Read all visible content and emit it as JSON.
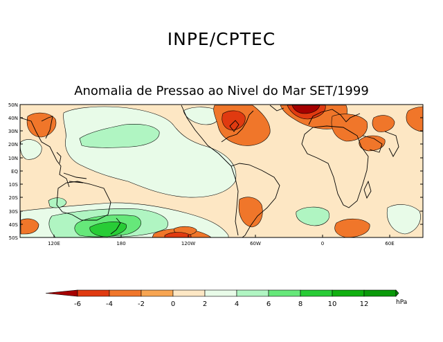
{
  "header": {
    "organization": "INPE/CPTEC",
    "title": "Anomalia de Pressao ao Nivel do Mar SET/1999"
  },
  "map": {
    "lat_labels": [
      "50N",
      "40N",
      "30N",
      "20N",
      "10N",
      "EQ",
      "10S",
      "20S",
      "30S",
      "40S",
      "50S"
    ],
    "lon_labels": [
      "120E",
      "180",
      "120W",
      "60W",
      "0",
      "60E"
    ]
  },
  "colorbar": {
    "unit": "hPa",
    "labels": [
      "-6",
      "-4",
      "-2",
      "0",
      "2",
      "4",
      "6",
      "8",
      "10",
      "12"
    ],
    "colors": [
      "#a50000",
      "#e03a10",
      "#f0762a",
      "#f7a552",
      "#fde7c4",
      "#e8fbe8",
      "#b0f5c2",
      "#66e87a",
      "#28cc36",
      "#10b010",
      "#0a9a0a",
      "#098c09"
    ]
  }
}
